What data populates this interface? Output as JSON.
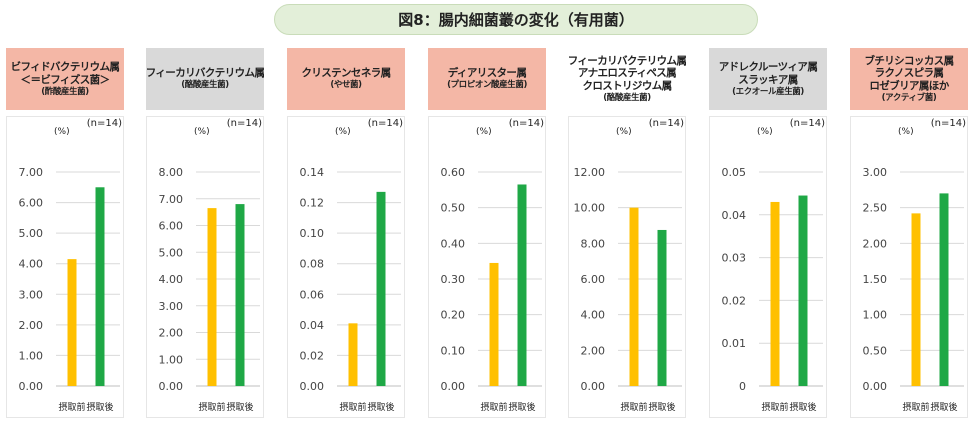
{
  "title": "図8：腸内細菌叢の変化（有用菌）",
  "colors": {
    "before": "#ffc000",
    "after": "#1fa846",
    "pink": "#f4b7a6",
    "gray": "#d9d9d9",
    "grid": "#d9d9d9",
    "frame": "#e6e6e6"
  },
  "chart_data": [
    {
      "type": "bar",
      "header": {
        "lines": [
          "ビフィドバクテリウム属",
          "＜＝ビフィズス菌＞"
        ],
        "sub": "(酢酸産生菌)",
        "style": "pink"
      },
      "unit": "(%)",
      "n": "(n=14)",
      "categories": [
        "摂取前",
        "摂取後"
      ],
      "values": [
        4.15,
        6.5
      ],
      "ylim": [
        0,
        7
      ],
      "ticks": [
        "0.00",
        "1.00",
        "2.00",
        "3.00",
        "4.00",
        "5.00",
        "6.00",
        "7.00"
      ]
    },
    {
      "type": "bar",
      "header": {
        "lines": [
          "フィーカリバクテリウム属"
        ],
        "sub": "(酪酸産生菌)",
        "style": "gray"
      },
      "unit": "(%)",
      "n": "(n=14)",
      "categories": [
        "摂取前",
        "摂取後"
      ],
      "values": [
        6.65,
        6.8
      ],
      "ylim": [
        0,
        8
      ],
      "ticks": [
        "0.00",
        "1.00",
        "2.00",
        "3.00",
        "4.00",
        "5.00",
        "6.00",
        "7.00",
        "8.00"
      ]
    },
    {
      "type": "bar",
      "header": {
        "lines": [
          "クリステンセネラ属"
        ],
        "sub": "(やせ菌)",
        "style": "pink"
      },
      "unit": "(%)",
      "n": "(n=14)",
      "categories": [
        "摂取前",
        "摂取後"
      ],
      "values": [
        0.041,
        0.127
      ],
      "ylim": [
        0,
        0.14
      ],
      "ticks": [
        "0.00",
        "0.02",
        "0.04",
        "0.06",
        "0.08",
        "0.10",
        "0.12",
        "0.14"
      ]
    },
    {
      "type": "bar",
      "header": {
        "lines": [
          "ディアリスター属"
        ],
        "sub": "(プロピオン酸産生菌)",
        "style": "pink"
      },
      "unit": "(%)",
      "n": "(n=14)",
      "categories": [
        "摂取前",
        "摂取後"
      ],
      "values": [
        0.345,
        0.565
      ],
      "ylim": [
        0,
        0.6
      ],
      "ticks": [
        "0.00",
        "0.10",
        "0.20",
        "0.30",
        "0.40",
        "0.50",
        "0.60"
      ]
    },
    {
      "type": "bar",
      "header": {
        "lines": [
          "フィーカリバクテリウム属",
          "アナエロスティペス属",
          "クロストリジウム属"
        ],
        "sub": "(酪酸産生菌)",
        "style": "plain"
      },
      "unit": "(%)",
      "n": "(n=14)",
      "categories": [
        "摂取前",
        "摂取後"
      ],
      "values": [
        10.0,
        8.75
      ],
      "ylim": [
        0,
        12
      ],
      "ticks": [
        "0.00",
        "2.00",
        "4.00",
        "6.00",
        "8.00",
        "10.00",
        "12.00"
      ]
    },
    {
      "type": "bar",
      "header": {
        "lines": [
          "アドレクルーツィア属",
          "スラッキア属"
        ],
        "sub": "(エクオール産生菌)",
        "style": "gray"
      },
      "unit": "(%)",
      "n": "(n=14)",
      "categories": [
        "摂取前",
        "摂取後"
      ],
      "values": [
        0.043,
        0.0445
      ],
      "ylim": [
        0,
        0.05
      ],
      "ticks": [
        "0",
        "0.01",
        "0.02",
        "0.03",
        "0.04",
        "0.05"
      ]
    },
    {
      "type": "bar",
      "header": {
        "lines": [
          "ブチリシコッカス属",
          "ラクノスピラ属",
          "ロゼブリア属ほか"
        ],
        "sub": "(アクティブ菌)",
        "style": "pink"
      },
      "unit": "(%)",
      "n": "(n=14)",
      "categories": [
        "摂取前",
        "摂取後"
      ],
      "values": [
        2.42,
        2.7
      ],
      "ylim": [
        0,
        3
      ],
      "ticks": [
        "0.00",
        "0.50",
        "1.00",
        "1.50",
        "2.00",
        "2.50",
        "3.00"
      ]
    }
  ]
}
